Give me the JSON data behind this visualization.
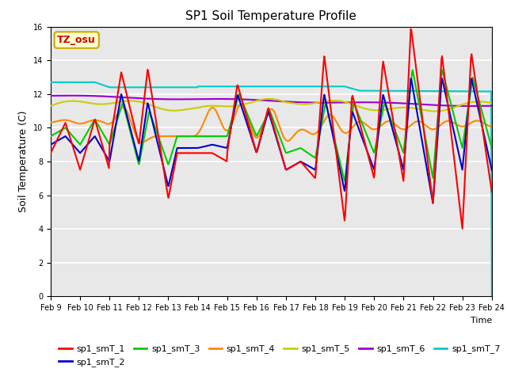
{
  "title": "SP1 Soil Temperature Profile",
  "xlabel": "Time",
  "ylabel": "Soil Temperature (C)",
  "ylim": [
    0,
    16
  ],
  "yticks": [
    0,
    2,
    4,
    6,
    8,
    10,
    12,
    14,
    16
  ],
  "x_labels": [
    "Feb 9",
    "Feb 10",
    "Feb 11",
    "Feb 12",
    "Feb 13",
    "Feb 14",
    "Feb 15",
    "Feb 16",
    "Feb 17",
    "Feb 18",
    "Feb 19",
    "Feb 20",
    "Feb 21",
    "Feb 22",
    "Feb 23",
    "Feb 24"
  ],
  "series_colors": {
    "sp1_smT_1": "#ff0000",
    "sp1_smT_2": "#0000cc",
    "sp1_smT_3": "#00cc00",
    "sp1_smT_4": "#ff8800",
    "sp1_smT_5": "#cccc00",
    "sp1_smT_6": "#9900cc",
    "sp1_smT_7": "#00cccc"
  },
  "annotation_text": "TZ_osu",
  "annotation_color": "#cc0000",
  "annotation_bg": "#ffffcc",
  "annotation_border": "#ccaa00",
  "background_color": "#e8e8e8"
}
